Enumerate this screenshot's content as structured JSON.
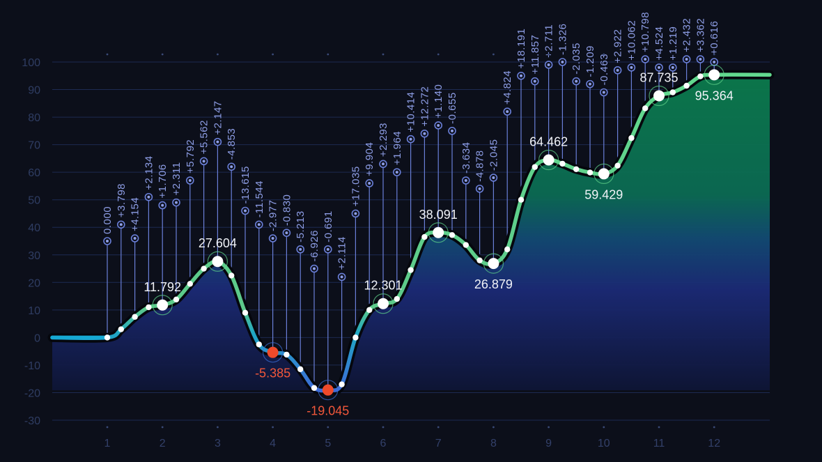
{
  "chart_data": {
    "type": "line",
    "title": "",
    "xlabel": "",
    "ylabel": "",
    "ylim": [
      -30,
      100
    ],
    "yticks": [
      100,
      90,
      80,
      70,
      60,
      50,
      40,
      30,
      20,
      10,
      0,
      -10,
      -20,
      -30
    ],
    "xticks": [
      1,
      2,
      3,
      4,
      5,
      6,
      7,
      8,
      9,
      10,
      11,
      12
    ],
    "grid": true,
    "legend": "none",
    "colors": {
      "background": "#0c0f1a",
      "line_up": "#5fd38a",
      "line_down": "#3a6fd8",
      "line_flat": "#16a9d4",
      "negative_marker": "#ee4a2a",
      "area_top": "#0f7a4a",
      "area_bottom": "#15205a",
      "stem": "#6a7fd8",
      "delta_text": "#8e9ee6"
    },
    "key_points": [
      {
        "x": 2,
        "y": 11.792,
        "label": "11.792"
      },
      {
        "x": 3,
        "y": 27.604,
        "label": "27.604"
      },
      {
        "x": 4,
        "y": -5.385,
        "label": "-5.385"
      },
      {
        "x": 5,
        "y": -19.045,
        "label": "-19.045"
      },
      {
        "x": 6,
        "y": 12.301,
        "label": "12.301"
      },
      {
        "x": 7,
        "y": 38.091,
        "label": "38.091"
      },
      {
        "x": 8,
        "y": 26.879,
        "label": "26.879"
      },
      {
        "x": 9,
        "y": 64.462,
        "label": "64.462"
      },
      {
        "x": 10,
        "y": 59.429,
        "label": "59.429"
      },
      {
        "x": 11,
        "y": 87.735,
        "label": "87.735"
      },
      {
        "x": 12,
        "y": 95.364,
        "label": "95.364"
      }
    ],
    "series": [
      {
        "values": [
          {
            "x": 1.0,
            "y": 0.0,
            "delta": "0.000",
            "marker": 35
          },
          {
            "x": 1.25,
            "y": 3.0,
            "delta": "+3.798",
            "marker": 41
          },
          {
            "x": 1.5,
            "y": 7.5,
            "delta": "+4.154",
            "marker": 36
          },
          {
            "x": 1.75,
            "y": 11.0,
            "delta": "+2.134",
            "marker": 51
          },
          {
            "x": 2.0,
            "y": 11.792,
            "delta": "+1.706",
            "marker": 48
          },
          {
            "x": 2.25,
            "y": 13.8,
            "delta": "+2.311",
            "marker": 49
          },
          {
            "x": 2.5,
            "y": 19.5,
            "delta": "+5.792",
            "marker": 57
          },
          {
            "x": 2.75,
            "y": 25.0,
            "delta": "+5.562",
            "marker": 64
          },
          {
            "x": 3.0,
            "y": 27.604,
            "delta": "+2.147",
            "marker": 71
          },
          {
            "x": 3.25,
            "y": 22.5,
            "delta": "-4.853",
            "marker": 62
          },
          {
            "x": 3.5,
            "y": 9.0,
            "delta": "-13.615",
            "marker": 46
          },
          {
            "x": 3.75,
            "y": -2.5,
            "delta": "-11.544",
            "marker": 41
          },
          {
            "x": 4.0,
            "y": -5.385,
            "delta": "-2.977",
            "marker": 36
          },
          {
            "x": 4.25,
            "y": -6.2,
            "delta": "-0.830",
            "marker": 38
          },
          {
            "x": 4.5,
            "y": -11.5,
            "delta": "-5.213",
            "marker": 32
          },
          {
            "x": 4.75,
            "y": -18.3,
            "delta": "-6.926",
            "marker": 25
          },
          {
            "x": 5.0,
            "y": -19.045,
            "delta": "-0.691",
            "marker": 32
          },
          {
            "x": 5.25,
            "y": -17.0,
            "delta": "+2.114",
            "marker": 22
          },
          {
            "x": 5.5,
            "y": 0.0,
            "delta": "+17.035",
            "marker": 45
          },
          {
            "x": 5.75,
            "y": 10.0,
            "delta": "+9.904",
            "marker": 56
          },
          {
            "x": 6.0,
            "y": 12.301,
            "delta": "+2.293",
            "marker": 63
          },
          {
            "x": 6.25,
            "y": 14.0,
            "delta": "+1.964",
            "marker": 60
          },
          {
            "x": 6.5,
            "y": 24.5,
            "delta": "+10.414",
            "marker": 72
          },
          {
            "x": 6.75,
            "y": 36.5,
            "delta": "+12.272",
            "marker": 74
          },
          {
            "x": 7.0,
            "y": 38.091,
            "delta": "+1.140",
            "marker": 77
          },
          {
            "x": 7.25,
            "y": 37.2,
            "delta": "-0.655",
            "marker": 75
          },
          {
            "x": 7.5,
            "y": 33.6,
            "delta": "-3.634",
            "marker": 57
          },
          {
            "x": 7.75,
            "y": 28.0,
            "delta": "-4.878",
            "marker": 54
          },
          {
            "x": 8.0,
            "y": 26.879,
            "delta": "-2.045",
            "marker": 58
          },
          {
            "x": 8.25,
            "y": 32.0,
            "delta": "+4.824",
            "marker": 82
          },
          {
            "x": 8.5,
            "y": 50.0,
            "delta": "+18.191",
            "marker": 95
          },
          {
            "x": 8.75,
            "y": 61.9,
            "delta": "+11.857",
            "marker": 93
          },
          {
            "x": 9.0,
            "y": 64.462,
            "delta": "+2.711",
            "marker": 99
          },
          {
            "x": 9.25,
            "y": 63.1,
            "delta": "-1.326",
            "marker": 100
          },
          {
            "x": 9.5,
            "y": 61.1,
            "delta": "-2.035",
            "marker": 93
          },
          {
            "x": 9.75,
            "y": 59.9,
            "delta": "-1.209",
            "marker": 92
          },
          {
            "x": 10.0,
            "y": 59.429,
            "delta": "-0.463",
            "marker": 89
          },
          {
            "x": 10.25,
            "y": 62.4,
            "delta": "+2.922",
            "marker": 97
          },
          {
            "x": 10.5,
            "y": 72.4,
            "delta": "+10.062",
            "marker": 98
          },
          {
            "x": 10.75,
            "y": 83.2,
            "delta": "+10.798",
            "marker": 101
          },
          {
            "x": 11.0,
            "y": 87.735,
            "delta": "+4.524",
            "marker": 98
          },
          {
            "x": 11.25,
            "y": 89.0,
            "delta": "+1.219",
            "marker": 98
          },
          {
            "x": 11.5,
            "y": 91.4,
            "delta": "+2.432",
            "marker": 101
          },
          {
            "x": 11.75,
            "y": 94.8,
            "delta": "+3.362",
            "marker": 101
          },
          {
            "x": 12.0,
            "y": 95.364,
            "delta": "+0.616",
            "marker": 100
          }
        ]
      }
    ]
  }
}
